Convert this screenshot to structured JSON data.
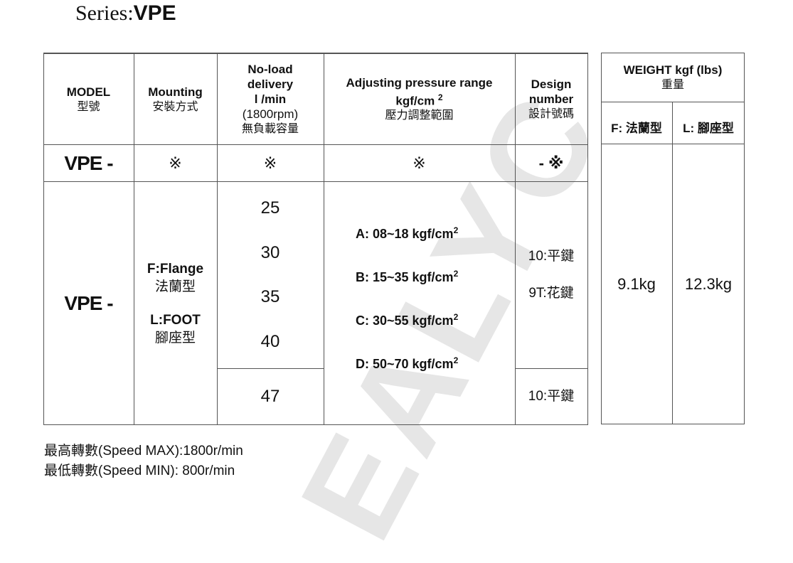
{
  "watermark": "EALYC",
  "title": {
    "prefix": "Series:",
    "series": "VPE"
  },
  "table": {
    "headers": {
      "model": [
        "MODEL",
        "型號"
      ],
      "mounting": [
        "Mounting",
        "安裝方式"
      ],
      "delivery": [
        "No-load",
        "delivery",
        "l /min",
        "(1800rpm)",
        "無負載容量"
      ],
      "pressure": [
        "Adjusting pressure range",
        "kgf/cm",
        "2",
        "壓力調整範圍"
      ],
      "design": [
        "Design",
        "number",
        "設計號碼"
      ]
    },
    "code_row": {
      "model": "VPE -",
      "mounting": "※",
      "delivery": "※",
      "pressure": "※",
      "design": "- ※"
    },
    "body": {
      "model": "VPE -",
      "mounting": [
        "F:Flange",
        "法蘭型",
        "L:FOOT",
        "腳座型"
      ],
      "delivery": [
        "25",
        "30",
        "35",
        "40"
      ],
      "delivery_extra": "47",
      "pressure": [
        {
          "label": "A: 08~18 kgf/cm",
          "sup": "2"
        },
        {
          "label": "B: 15~35 kgf/cm",
          "sup": "2"
        },
        {
          "label": "C: 30~55 kgf/cm",
          "sup": "2"
        },
        {
          "label": "D: 50~70 kgf/cm",
          "sup": "2"
        }
      ],
      "design": [
        "10:平鍵",
        "9T:花鍵"
      ],
      "design_extra": "10:平鍵"
    }
  },
  "weight": {
    "header": [
      "WEIGHT kgf (lbs)",
      "重量"
    ],
    "sub": [
      "F: 法蘭型",
      "L: 腳座型"
    ],
    "values": [
      "9.1kg",
      "12.3kg"
    ]
  },
  "footer": [
    "最高轉數(Speed MAX):1800r/min",
    "最低轉數(Speed MIN): 800r/min"
  ]
}
